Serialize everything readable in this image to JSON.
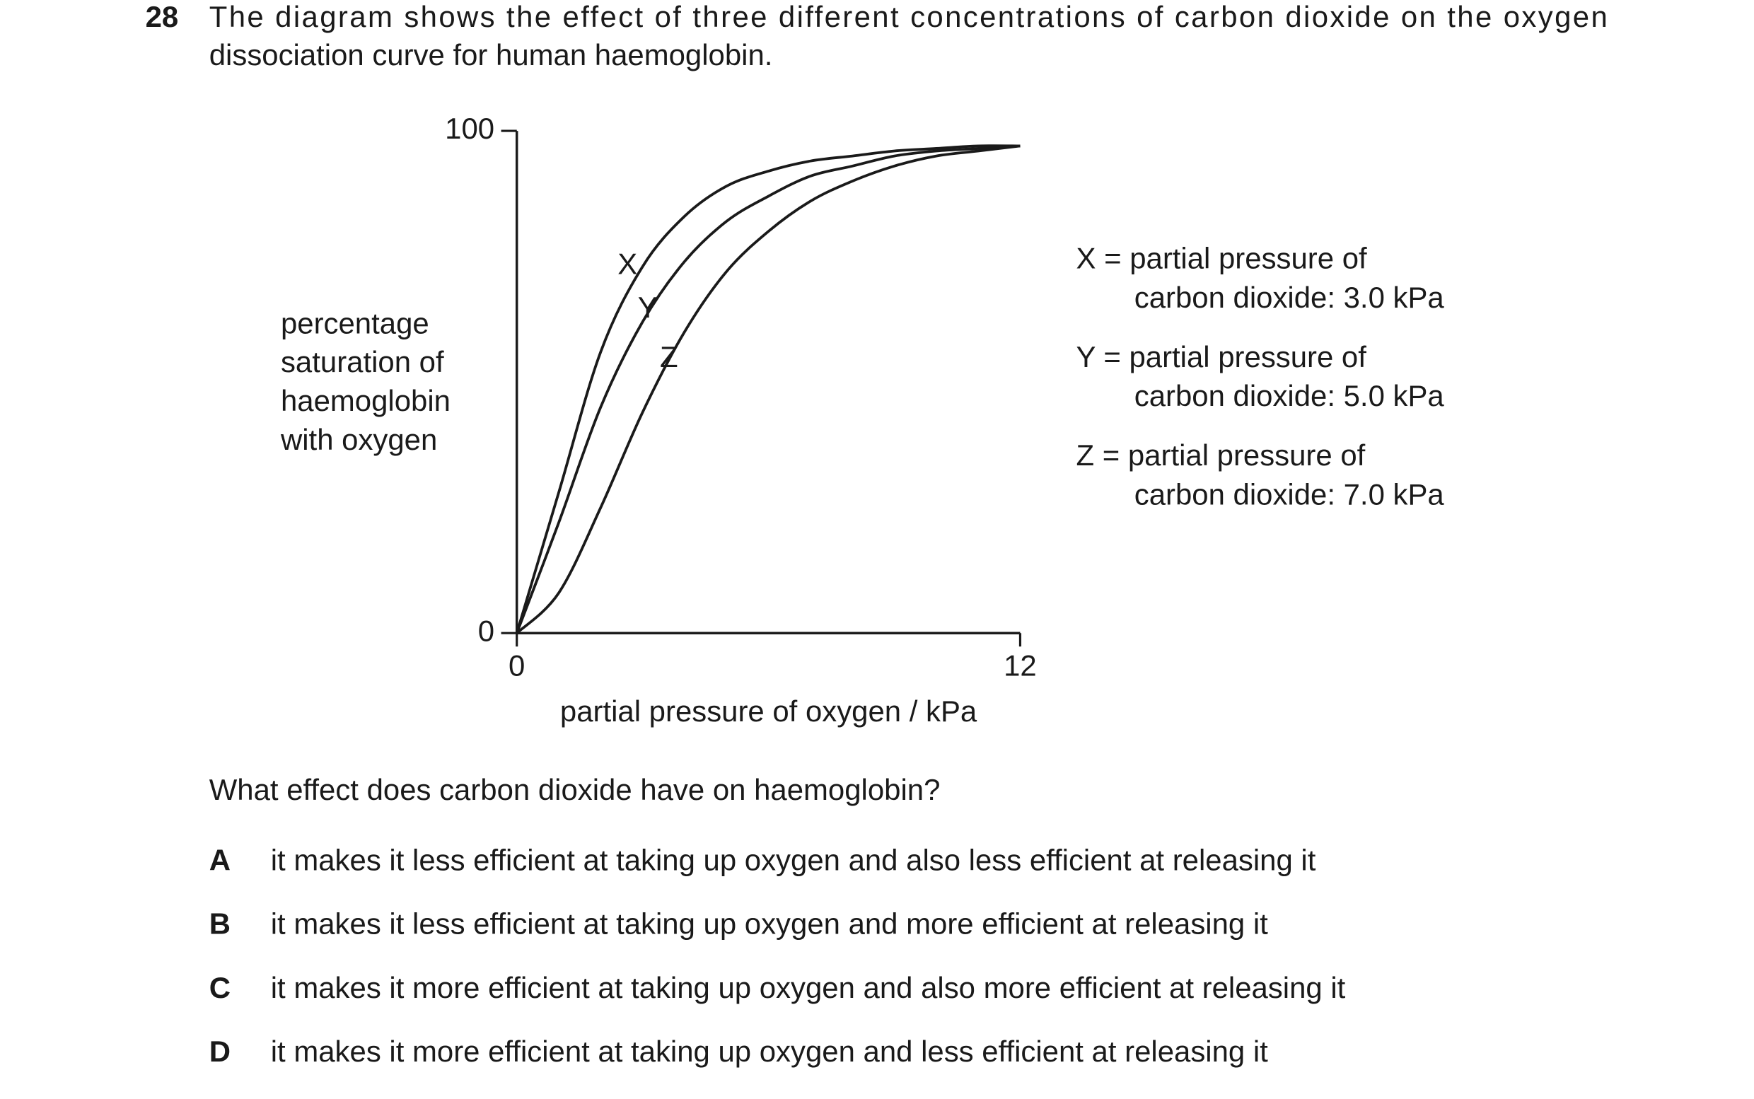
{
  "question_number": "28",
  "question_text_lines": [
    "The diagram shows the effect of three different concentrations of carbon dioxide on the oxygen",
    "dissociation curve for human haemoglobin."
  ],
  "chart_data": {
    "type": "line",
    "y_label_lines": [
      "percentage",
      "saturation of",
      "haemoglobin",
      "with oxygen"
    ],
    "x_label": "partial pressure of oxygen / kPa",
    "x": [
      0,
      1,
      2,
      3,
      4,
      5,
      6,
      7,
      8,
      9,
      10,
      11,
      12
    ],
    "xlim": [
      0,
      12
    ],
    "xticks": [
      0,
      12
    ],
    "ylim": [
      0,
      100
    ],
    "yticks": [
      0,
      100
    ],
    "series": [
      {
        "name": "X",
        "color": "#1a1a1a",
        "values": [
          0,
          28,
          56,
          73,
          83,
          89,
          92,
          94,
          95,
          96,
          96.5,
          97,
          97
        ]
      },
      {
        "name": "Y",
        "color": "#1a1a1a",
        "values": [
          0,
          22,
          45,
          62,
          74,
          82,
          87,
          91,
          93,
          95,
          96,
          96.5,
          97
        ]
      },
      {
        "name": "Z",
        "color": "#1a1a1a",
        "values": [
          0,
          8,
          25,
          44,
          60,
          72,
          80,
          86,
          90,
          93,
          95,
          96,
          97
        ]
      }
    ],
    "legend": [
      [
        "X = partial pressure of",
        "carbon dioxide: 3.0 kPa"
      ],
      [
        "Y = partial pressure of",
        "carbon dioxide: 5.0 kPa"
      ],
      [
        "Z = partial pressure of",
        "carbon dioxide: 7.0 kPa"
      ]
    ]
  },
  "prompt": "What effect does carbon dioxide have on haemoglobin?",
  "options": [
    {
      "letter": "A",
      "text": "it makes it less efficient at taking up oxygen and also less efficient at releasing it"
    },
    {
      "letter": "B",
      "text": "it makes it less efficient at taking up oxygen and more efficient at releasing it"
    },
    {
      "letter": "C",
      "text": "it makes it more efficient at taking up oxygen and also more efficient at releasing it"
    },
    {
      "letter": "D",
      "text": "it makes it more efficient at taking up oxygen and less efficient at releasing it"
    }
  ]
}
